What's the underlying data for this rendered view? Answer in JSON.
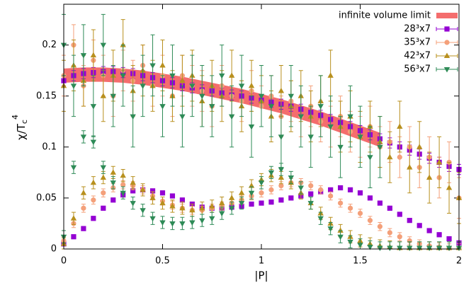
{
  "chart_data": {
    "type": "scatter",
    "xlabel": "|P|",
    "ylabel": {
      "base": "χ/T",
      "sub": "c",
      "sup": "4"
    },
    "xlim": [
      0,
      2
    ],
    "ylim": [
      0,
      0.24
    ],
    "xticks": [
      0,
      0.5,
      1,
      1.5,
      2
    ],
    "yticks": [
      0,
      0.05,
      0.1,
      0.15,
      0.2
    ],
    "legend": "top-right",
    "band": {
      "name": "infinite volume limit",
      "color": "#f46d6d",
      "x": [
        0,
        0.1,
        0.2,
        0.3,
        0.4,
        0.5,
        0.6,
        0.7,
        0.8,
        0.9,
        1.0,
        1.1,
        1.2,
        1.3,
        1.4,
        1.5,
        1.6
      ],
      "values": [
        0.17,
        0.171,
        0.171,
        0.17,
        0.168,
        0.165,
        0.162,
        0.158,
        0.154,
        0.15,
        0.145,
        0.14,
        0.134,
        0.128,
        0.121,
        0.114,
        0.107
      ],
      "errors": [
        0.007,
        0.007,
        0.007,
        0.007,
        0.007,
        0.007,
        0.007,
        0.007,
        0.007,
        0.007,
        0.007,
        0.007,
        0.007,
        0.007,
        0.007,
        0.007,
        0.007
      ]
    },
    "x": [
      0,
      0.05,
      0.1,
      0.15,
      0.2,
      0.25,
      0.3,
      0.35,
      0.4,
      0.45,
      0.5,
      0.55,
      0.6,
      0.65,
      0.7,
      0.75,
      0.8,
      0.85,
      0.9,
      0.95,
      1.0,
      1.05,
      1.1,
      1.15,
      1.2,
      1.25,
      1.3,
      1.35,
      1.4,
      1.45,
      1.5,
      1.55,
      1.6,
      1.65,
      1.7,
      1.75,
      1.8,
      1.85,
      1.9,
      1.95,
      2.0
    ],
    "series": [
      {
        "name": "28³x7",
        "color": "#9400d3",
        "marker": "square",
        "branches": [
          {
            "values": [
              0.165,
              0.17,
              0.172,
              0.173,
              0.174,
              0.174,
              0.173,
              0.172,
              0.17,
              0.168,
              0.165,
              0.163,
              0.16,
              0.158,
              0.156,
              0.155,
              0.153,
              0.151,
              0.15,
              0.148,
              0.146,
              0.144,
              0.142,
              0.14,
              0.137,
              0.134,
              0.131,
              0.127,
              0.124,
              0.12,
              0.116,
              0.112,
              0.108,
              0.104,
              0.1,
              0.097,
              0.093,
              0.089,
              0.085,
              0.081,
              0.078
            ],
            "errors": [
              0.005,
              0.005,
              0.005,
              0.005,
              0.005,
              0.005,
              0.005,
              0.005,
              0.005,
              0.005,
              0.005,
              0.005,
              0.005,
              0.005,
              0.005,
              0.005,
              0.005,
              0.005,
              0.005,
              0.005,
              0.005,
              0.005,
              0.005,
              0.005,
              0.005,
              0.005,
              0.005,
              0.005,
              0.005,
              0.005,
              0.005,
              0.005,
              0.005,
              0.005,
              0.005,
              0.005,
              0.005,
              0.005,
              0.005,
              0.005,
              0.005
            ]
          },
          {
            "values": [
              0.005,
              0.012,
              0.02,
              0.03,
              0.04,
              0.048,
              0.053,
              0.057,
              0.058,
              0.057,
              0.055,
              0.052,
              0.048,
              0.044,
              0.041,
              0.04,
              0.04,
              0.041,
              0.042,
              0.044,
              0.045,
              0.046,
              0.048,
              0.05,
              0.052,
              0.054,
              0.056,
              0.058,
              0.06,
              0.058,
              0.055,
              0.05,
              0.045,
              0.04,
              0.034,
              0.028,
              0.023,
              0.018,
              0.014,
              0.01,
              0.006
            ],
            "errors": [
              0.002,
              0.002,
              0.002,
              0.002,
              0.002,
              0.002,
              0.002,
              0.002,
              0.002,
              0.002,
              0.002,
              0.002,
              0.002,
              0.002,
              0.002,
              0.002,
              0.002,
              0.002,
              0.002,
              0.002,
              0.002,
              0.002,
              0.002,
              0.002,
              0.002,
              0.002,
              0.002,
              0.002,
              0.002,
              0.002,
              0.002,
              0.002,
              0.002,
              0.002,
              0.002,
              0.002,
              0.002,
              0.002,
              0.002,
              0.002,
              0.002
            ]
          }
        ]
      },
      {
        "name": "35³x7",
        "color": "#f4a07a",
        "marker": "circle",
        "branches": [
          {
            "values": [
              0.17,
              0.2,
              0.16,
              0.185,
              0.17,
              0.15,
              0.175,
              0.165,
              0.18,
              0.16,
              0.17,
              0.15,
              0.17,
              0.16,
              0.155,
              0.14,
              0.16,
              0.15,
              0.145,
              0.155,
              0.14,
              0.15,
              0.13,
              0.145,
              0.13,
              0.14,
              0.125,
              0.12,
              0.13,
              0.115,
              0.11,
              0.12,
              0.1,
              0.105,
              0.09,
              0.1,
              0.08,
              0.09,
              0.07,
              0.085,
              0.05
            ],
            "errors": [
              0.02,
              0.02,
              0.02,
              0.02,
              0.02,
              0.02,
              0.02,
              0.02,
              0.02,
              0.02,
              0.02,
              0.02,
              0.02,
              0.02,
              0.02,
              0.02,
              0.02,
              0.02,
              0.02,
              0.02,
              0.02,
              0.02,
              0.02,
              0.02,
              0.02,
              0.02,
              0.02,
              0.02,
              0.02,
              0.02,
              0.02,
              0.02,
              0.02,
              0.02,
              0.02,
              0.02,
              0.02,
              0.02,
              0.02,
              0.02,
              0.02
            ]
          },
          {
            "values": [
              0.008,
              0.025,
              0.04,
              0.048,
              0.055,
              0.06,
              0.063,
              0.062,
              0.058,
              0.052,
              0.047,
              0.043,
              0.04,
              0.038,
              0.038,
              0.04,
              0.042,
              0.045,
              0.048,
              0.052,
              0.055,
              0.058,
              0.062,
              0.065,
              0.065,
              0.062,
              0.058,
              0.052,
              0.045,
              0.04,
              0.035,
              0.028,
              0.022,
              0.016,
              0.012,
              0.008,
              0.005,
              0.003,
              0.002,
              0.001,
              0.001
            ],
            "errors": [
              0.004,
              0.004,
              0.004,
              0.004,
              0.004,
              0.004,
              0.004,
              0.004,
              0.004,
              0.004,
              0.004,
              0.004,
              0.004,
              0.004,
              0.004,
              0.004,
              0.004,
              0.004,
              0.004,
              0.004,
              0.004,
              0.004,
              0.004,
              0.004,
              0.004,
              0.004,
              0.004,
              0.004,
              0.004,
              0.004,
              0.004,
              0.004,
              0.004,
              0.004,
              0.004,
              0.004,
              0.004,
              0.004,
              0.004,
              0.004,
              0.004
            ]
          }
        ]
      },
      {
        "name": "42³x7",
        "color": "#b8901e",
        "marker": "triangle-up",
        "branches": [
          {
            "values": [
              0.16,
              0.18,
              0.165,
              0.19,
              0.15,
              0.17,
              0.2,
              0.155,
              0.175,
              0.16,
              0.18,
              0.15,
              0.165,
              0.17,
              0.145,
              0.16,
              0.15,
              0.17,
              0.14,
              0.16,
              0.145,
              0.13,
              0.155,
              0.14,
              0.15,
              0.13,
              0.145,
              0.17,
              0.12,
              0.13,
              0.11,
              0.12,
              0.105,
              0.09,
              0.12,
              0.08,
              0.1,
              0.07,
              0.085,
              0.06,
              0.05
            ],
            "errors": [
              0.025,
              0.025,
              0.025,
              0.025,
              0.025,
              0.025,
              0.025,
              0.025,
              0.025,
              0.025,
              0.025,
              0.025,
              0.025,
              0.025,
              0.025,
              0.025,
              0.025,
              0.025,
              0.025,
              0.025,
              0.025,
              0.025,
              0.025,
              0.025,
              0.025,
              0.025,
              0.025,
              0.025,
              0.025,
              0.025,
              0.025,
              0.025,
              0.025,
              0.025,
              0.025,
              0.025,
              0.025,
              0.025,
              0.025,
              0.025,
              0.025
            ]
          },
          {
            "values": [
              0.005,
              0.03,
              0.055,
              0.065,
              0.07,
              0.075,
              0.072,
              0.065,
              0.058,
              0.05,
              0.045,
              0.042,
              0.04,
              0.038,
              0.04,
              0.042,
              0.045,
              0.05,
              0.055,
              0.062,
              0.068,
              0.072,
              0.07,
              0.065,
              0.055,
              0.045,
              0.035,
              0.025,
              0.018,
              0.012,
              0.008,
              0.005,
              0.003,
              0.002,
              0.001,
              0.001,
              0.001,
              0.001,
              0.001,
              0.001,
              0.001
            ],
            "errors": [
              0.006,
              0.006,
              0.006,
              0.006,
              0.006,
              0.006,
              0.006,
              0.006,
              0.006,
              0.006,
              0.006,
              0.006,
              0.006,
              0.006,
              0.006,
              0.006,
              0.006,
              0.006,
              0.006,
              0.006,
              0.006,
              0.006,
              0.006,
              0.006,
              0.006,
              0.006,
              0.006,
              0.006,
              0.006,
              0.006,
              0.006,
              0.006,
              0.006,
              0.006,
              0.006,
              0.006,
              0.006,
              0.006,
              0.006,
              0.006,
              0.006
            ]
          }
        ]
      },
      {
        "name": "56³x7",
        "color": "#2e8b57",
        "marker": "triangle-down",
        "branches": [
          {
            "values": [
              0.2,
              0.16,
              0.19,
              0.14,
              0.2,
              0.15,
              0.17,
              0.13,
              0.16,
              0.18,
              0.14,
              0.17,
              0.13,
              0.16,
              0.15,
              0.14,
              0.17,
              0.13,
              0.16,
              0.12,
              0.15,
              0.14,
              0.11,
              0.15,
              0.13,
              0.11,
              0.14,
              0.12,
              0.1,
              0.13,
              0.11,
              0.09,
              0.1,
              null,
              null,
              null,
              null,
              null,
              null,
              null,
              null
            ],
            "errors": [
              0.03,
              0.03,
              0.03,
              0.03,
              0.03,
              0.03,
              0.03,
              0.03,
              0.03,
              0.03,
              0.03,
              0.03,
              0.03,
              0.03,
              0.03,
              0.03,
              0.03,
              0.03,
              0.03,
              0.03,
              0.03,
              0.03,
              0.03,
              0.03,
              0.03,
              0.03,
              0.03,
              0.03,
              0.03,
              0.03,
              0.03,
              0.03,
              0.03,
              null,
              null,
              null,
              null,
              null,
              null,
              null,
              null
            ]
          },
          {
            "values": [
              0.012,
              0.08,
              0.11,
              0.105,
              0.08,
              0.065,
              0.055,
              0.045,
              0.038,
              0.03,
              0.026,
              0.025,
              0.025,
              0.026,
              0.028,
              0.03,
              0.035,
              0.04,
              0.045,
              0.055,
              0.065,
              0.075,
              0.078,
              0.07,
              0.06,
              0.045,
              0.03,
              0.02,
              0.012,
              0.007,
              0.004,
              0.002,
              0.001,
              0.001,
              0.001,
              0.001,
              0.001,
              0.001,
              0.001,
              0.001,
              0.001
            ],
            "errors": [
              0.006,
              0.006,
              0.006,
              0.006,
              0.006,
              0.006,
              0.006,
              0.006,
              0.006,
              0.006,
              0.006,
              0.006,
              0.006,
              0.006,
              0.006,
              0.006,
              0.006,
              0.006,
              0.006,
              0.006,
              0.006,
              0.006,
              0.006,
              0.006,
              0.006,
              0.006,
              0.006,
              0.006,
              0.006,
              0.006,
              0.006,
              0.006,
              0.006,
              0.006,
              0.006,
              0.006,
              0.006,
              0.006,
              0.006,
              0.006,
              0.006
            ]
          }
        ]
      }
    ]
  }
}
